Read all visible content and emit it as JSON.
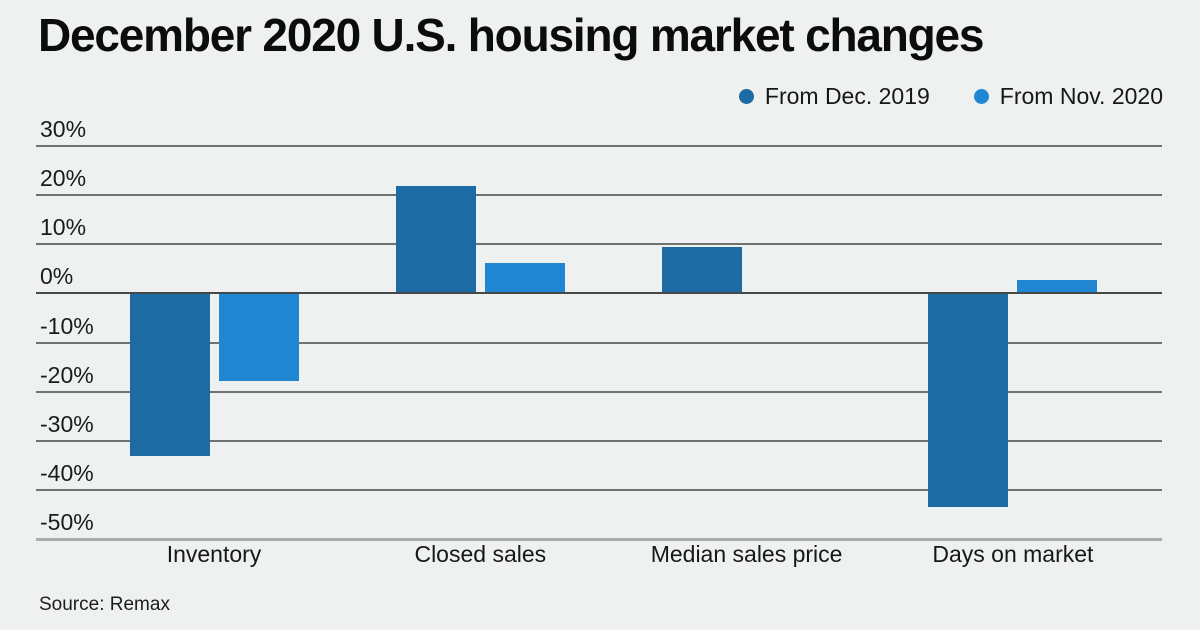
{
  "title": "December 2020 U.S. housing market changes",
  "legend": {
    "items": [
      {
        "label": "From Dec. 2019",
        "color": "#1d6ba5",
        "marker": "circle-icon"
      },
      {
        "label": "From Nov. 2020",
        "color": "#2187d2",
        "marker": "circle-icon"
      }
    ]
  },
  "source": "Source: Remax",
  "colors": {
    "background": "#eff1f0",
    "series_dark_blue": "#1d6ba5",
    "series_light_blue": "#2187d2",
    "gridline": "#6f7370",
    "zero_line": "#454947",
    "baseline": "#a9adab",
    "text": "#161817"
  },
  "chart_data": {
    "type": "bar",
    "title": "December 2020 U.S. housing market changes",
    "categories": [
      "Inventory",
      "Closed sales",
      "Median sales price",
      "Days on market"
    ],
    "series": [
      {
        "name": "From Dec. 2019",
        "color": "#1d6ba5",
        "values": [
          -33,
          21.7,
          9.2,
          -43.3
        ]
      },
      {
        "name": "From Nov. 2020",
        "color": "#2187d2",
        "values": [
          -17.7,
          6,
          0,
          2.5
        ]
      }
    ],
    "xlabel": "",
    "ylabel": "",
    "ylim": [
      -50,
      30
    ],
    "ytick_step": 10,
    "ytick_labels": [
      "30%",
      "20%",
      "10%",
      "0%",
      "-10%",
      "-20%",
      "-30%",
      "-40%",
      "-50%"
    ],
    "grid": true,
    "legend_position": "top-right",
    "source": "Source: Remax"
  }
}
